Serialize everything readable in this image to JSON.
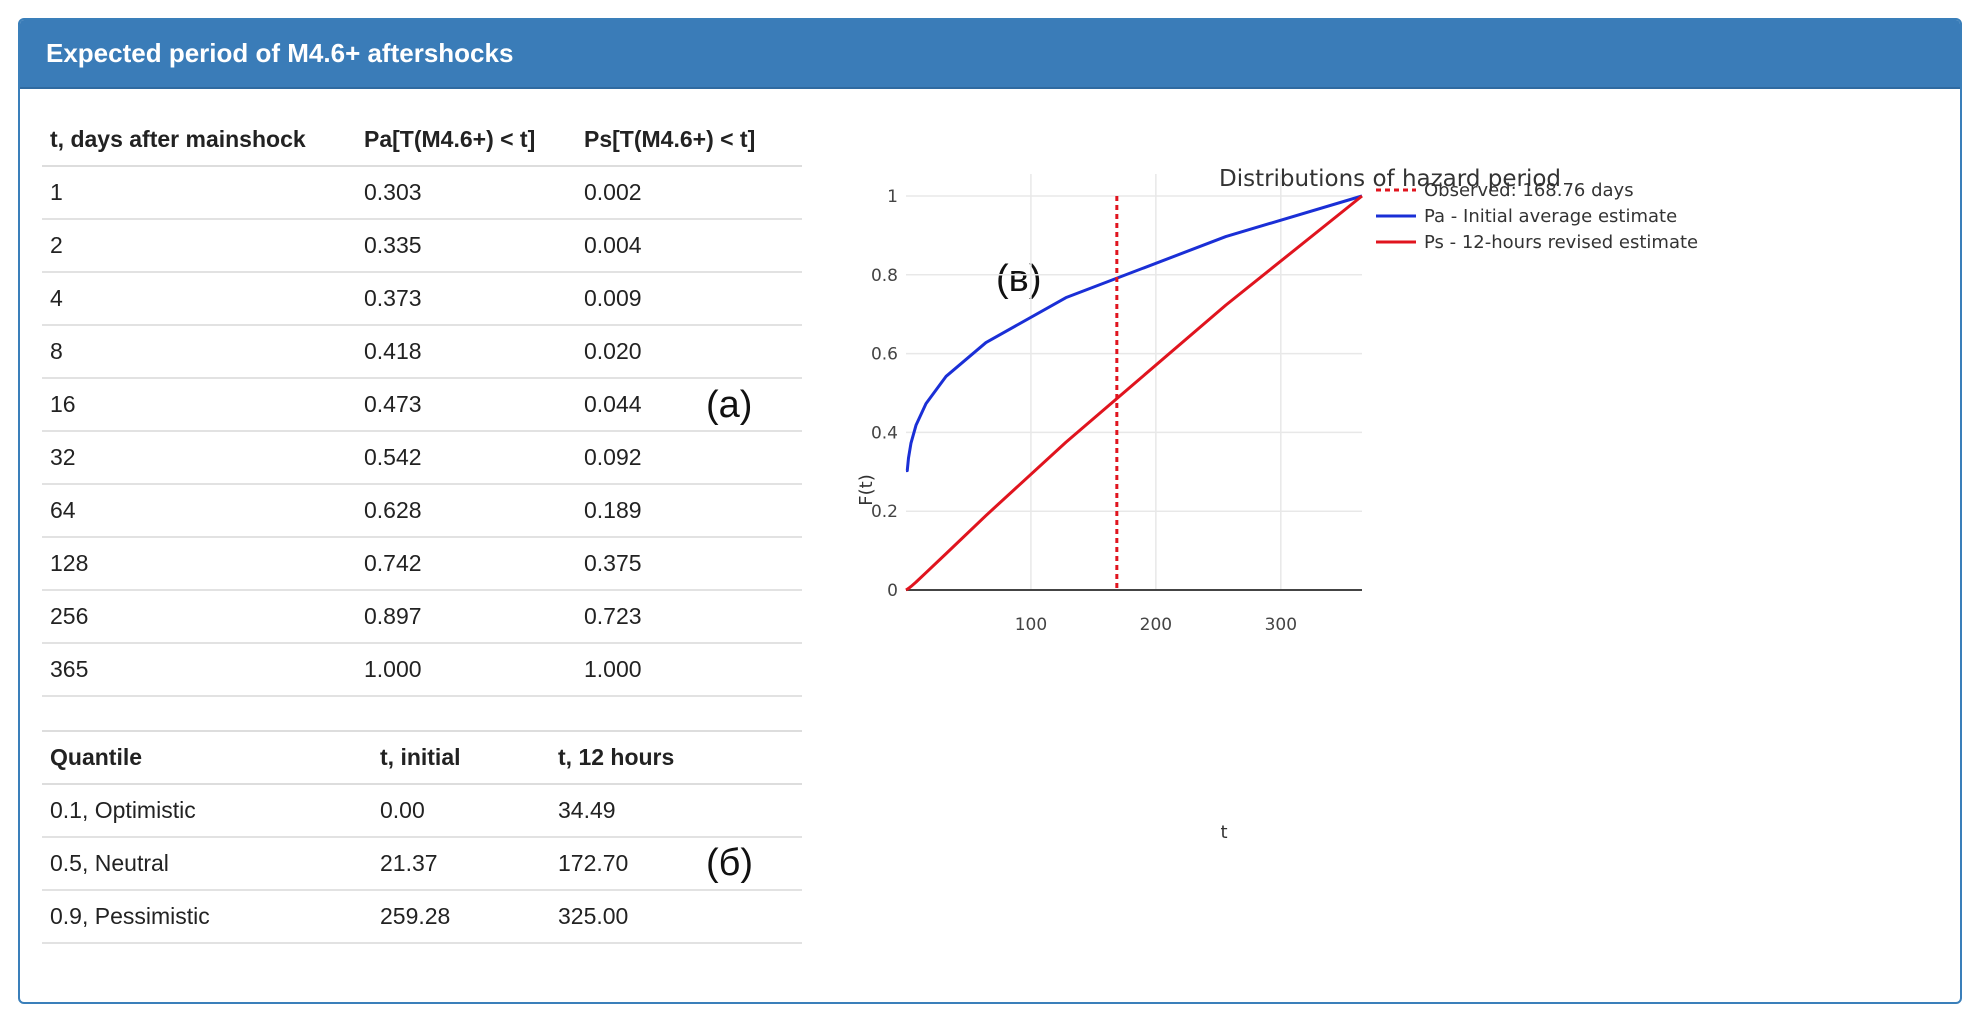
{
  "panel": {
    "title": "Expected period of M4.6+ aftershocks"
  },
  "table_a": {
    "headers": [
      "t, days after mainshock",
      "Pa[T(M4.6+) < t]",
      "Ps[T(M4.6+) < t]"
    ],
    "rows": [
      [
        "1",
        "0.303",
        "0.002"
      ],
      [
        "2",
        "0.335",
        "0.004"
      ],
      [
        "4",
        "0.373",
        "0.009"
      ],
      [
        "8",
        "0.418",
        "0.020"
      ],
      [
        "16",
        "0.473",
        "0.044"
      ],
      [
        "32",
        "0.542",
        "0.092"
      ],
      [
        "64",
        "0.628",
        "0.189"
      ],
      [
        "128",
        "0.742",
        "0.375"
      ],
      [
        "256",
        "0.897",
        "0.723"
      ],
      [
        "365",
        "1.000",
        "1.000"
      ]
    ]
  },
  "table_b": {
    "headers": [
      "Quantile",
      "t, initial",
      "t, 12 hours"
    ],
    "rows": [
      [
        "0.1, Optimistic",
        "0.00",
        "34.49"
      ],
      [
        "0.5, Neutral",
        "21.37",
        "172.70"
      ],
      [
        "0.9, Pessimistic",
        "259.28",
        "325.00"
      ]
    ]
  },
  "annotations": {
    "a": "(a)",
    "b": "(б)",
    "c": "(в)"
  },
  "chart_data": {
    "type": "line",
    "title": "Distributions of hazard period",
    "xlabel": "t",
    "ylabel": "F(t)",
    "xlim": [
      0,
      365
    ],
    "ylim": [
      0,
      1
    ],
    "x_ticks": [
      100,
      200,
      300
    ],
    "y_ticks": [
      0,
      0.2,
      0.4,
      0.6,
      0.8,
      1
    ],
    "y_tick_labels": [
      "0",
      "0.2",
      "0.4",
      "0.6",
      "0.8",
      "1"
    ],
    "grid": true,
    "legend_position": "right",
    "series": [
      {
        "name": "Pa - Initial average estimate",
        "color": "#1a2fd6",
        "x": [
          0,
          1,
          2,
          4,
          8,
          16,
          32,
          64,
          128,
          256,
          365
        ],
        "y": [
          0.303,
          0.303,
          0.335,
          0.373,
          0.418,
          0.473,
          0.542,
          0.628,
          0.742,
          0.897,
          1.0
        ]
      },
      {
        "name": "Ps - 12-hours revised estimate",
        "color": "#e0141e",
        "x": [
          0,
          1,
          2,
          4,
          8,
          16,
          32,
          64,
          128,
          256,
          365
        ],
        "y": [
          0.0,
          0.002,
          0.004,
          0.009,
          0.02,
          0.044,
          0.092,
          0.189,
          0.375,
          0.723,
          1.0
        ]
      }
    ],
    "vlines": [
      {
        "name": "Observed: 168.76 days",
        "x": 168.76,
        "color": "#e0141e",
        "dash": "dotted"
      }
    ]
  }
}
